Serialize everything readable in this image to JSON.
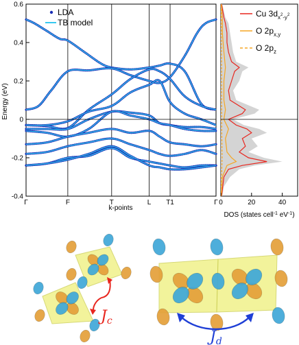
{
  "chart_data": [
    {
      "type": "line",
      "ylabel": "Energy (eV)",
      "xlabel": "k-points",
      "ylim": [
        -0.4,
        0.6
      ],
      "yticks": [
        -0.4,
        -0.2,
        0,
        0.2,
        0.4,
        0.6
      ],
      "ytick_labels": [
        "-0.4",
        "-0.2",
        "0",
        "0.2",
        "0.4",
        "0.6"
      ],
      "kpoints": [
        "Γ",
        "F",
        "T",
        "L",
        "T1",
        "Γ"
      ],
      "kpos": [
        0,
        1,
        2.05,
        2.95,
        3.45,
        4.55
      ],
      "fermi_level": 0,
      "grid": false,
      "legend_position": "top-left",
      "series": [
        {
          "name": "LDA",
          "marker": "dots",
          "color": "#1a2fb5"
        },
        {
          "name": "TB model",
          "marker": "line",
          "color": "#36c9f0"
        }
      ],
      "bands": [
        {
          "x": [
            0,
            0.2,
            0.5,
            0.8,
            1,
            1.4,
            1.8,
            2.05,
            2.5,
            2.95,
            3.2,
            3.45,
            3.8,
            4.2,
            4.55
          ],
          "y": [
            0.52,
            0.5,
            0.46,
            0.42,
            0.41,
            0.35,
            0.29,
            0.27,
            0.26,
            0.27,
            0.28,
            0.29,
            0.25,
            0.08,
            0.05
          ]
        },
        {
          "x": [
            0,
            0.3,
            0.6,
            1,
            1.5,
            2.05,
            2.5,
            2.95,
            3.2,
            3.45,
            3.8,
            4.1,
            4.3,
            4.55
          ],
          "y": [
            0.05,
            0.07,
            0.15,
            0.25,
            0.255,
            0.265,
            0.23,
            0.2,
            0.19,
            0.22,
            0.33,
            0.45,
            0.5,
            0.52
          ]
        },
        {
          "x": [
            0,
            0.5,
            1,
            1.5,
            2.05,
            2.5,
            2.95,
            3.2,
            3.45,
            3.8,
            4.2,
            4.55
          ],
          "y": [
            -0.03,
            -0.035,
            -0.045,
            0.05,
            0.13,
            0.21,
            0.26,
            0.25,
            0.21,
            0.12,
            0.07,
            0.05
          ]
        },
        {
          "x": [
            0,
            0.5,
            1,
            1.5,
            2.05,
            2.5,
            2.95,
            3.2,
            3.45,
            3.8,
            4.2,
            4.55
          ],
          "y": [
            -0.03,
            -0.03,
            -0.01,
            0.04,
            0.07,
            0.14,
            0.18,
            0.2,
            0.09,
            0.03,
            0.0,
            -0.03
          ]
        },
        {
          "x": [
            0,
            0.5,
            1,
            1.5,
            2.05,
            2.5,
            2.95,
            3.2,
            3.45,
            3.8,
            4.2,
            4.55
          ],
          "y": [
            -0.05,
            -0.05,
            -0.05,
            0.0,
            0.04,
            0.035,
            0.02,
            -0.02,
            -0.03,
            -0.04,
            -0.04,
            -0.05
          ]
        },
        {
          "x": [
            0,
            0.5,
            1,
            1.5,
            2.05,
            2.5,
            2.95,
            3.2,
            3.45,
            3.8,
            4.2,
            4.55
          ],
          "y": [
            -0.06,
            -0.07,
            -0.09,
            -0.05,
            0.04,
            0.02,
            0.0,
            -0.02,
            -0.03,
            -0.05,
            -0.06,
            -0.06
          ]
        },
        {
          "x": [
            0,
            0.5,
            1,
            1.5,
            2.05,
            2.5,
            2.95,
            3.2,
            3.45,
            3.8,
            4.2,
            4.55
          ],
          "y": [
            -0.13,
            -0.12,
            -0.09,
            -0.07,
            -0.05,
            -0.07,
            -0.06,
            -0.09,
            -0.12,
            -0.13,
            -0.14,
            -0.13
          ]
        },
        {
          "x": [
            0,
            0.5,
            1,
            1.5,
            2.05,
            2.5,
            2.95,
            3.2,
            3.45,
            3.8,
            4.2,
            4.55
          ],
          "y": [
            -0.18,
            -0.17,
            -0.14,
            -0.12,
            -0.1,
            -0.13,
            -0.16,
            -0.18,
            -0.19,
            -0.18,
            -0.16,
            -0.18
          ]
        },
        {
          "x": [
            0,
            0.5,
            1,
            1.5,
            2.05,
            2.5,
            2.95,
            3.2,
            3.45,
            3.8,
            4.2,
            4.55
          ],
          "y": [
            -0.24,
            -0.23,
            -0.2,
            -0.19,
            -0.15,
            -0.2,
            -0.22,
            -0.23,
            -0.24,
            -0.25,
            -0.24,
            -0.24
          ]
        },
        {
          "x": [
            0,
            0.5,
            1,
            1.5,
            2.05,
            2.5,
            2.95,
            3.2,
            3.45,
            3.8,
            4.2,
            4.55
          ],
          "y": [
            -0.24,
            -0.23,
            -0.21,
            -0.18,
            -0.14,
            -0.19,
            -0.24,
            -0.25,
            -0.26,
            -0.26,
            -0.25,
            -0.24
          ]
        }
      ]
    },
    {
      "type": "line",
      "xlabel_prefix": "DOS (states cell",
      "xlabel_sup1": "-1",
      "xlabel_mid": " eV",
      "xlabel_sup2": "-1",
      "xlabel_suffix": ")",
      "xlim": [
        0,
        50
      ],
      "xticks": [
        0,
        20,
        40
      ],
      "xtick_labels": [
        "0",
        "20",
        "40"
      ],
      "ylim": [
        -0.4,
        0.6
      ],
      "legend_position": "top-right",
      "legend": [
        {
          "main": "Cu 3d",
          "sub": "x",
          "subsup": "2",
          "subsep": "-y",
          "subsup2": "2",
          "color": "#e8261e",
          "dash": false
        },
        {
          "main": "O 2p",
          "sub": "x,y",
          "color": "#f5a623",
          "dash": false
        },
        {
          "main": "O 2p",
          "sub": "z",
          "color": "#f5a623",
          "dash": true
        }
      ],
      "series": [
        {
          "name": "total",
          "color": "#cfcfcf",
          "fill": true,
          "y": [
            -0.4,
            -0.35,
            -0.3,
            -0.26,
            -0.24,
            -0.22,
            -0.2,
            -0.17,
            -0.14,
            -0.1,
            -0.07,
            -0.05,
            -0.03,
            0.0,
            0.03,
            0.05,
            0.1,
            0.15,
            0.2,
            0.25,
            0.27,
            0.3,
            0.35,
            0.4,
            0.45,
            0.5,
            0.53,
            0.6
          ],
          "x": [
            1,
            2,
            6,
            12,
            22,
            40,
            28,
            18,
            24,
            20,
            30,
            25,
            15,
            8,
            22,
            25,
            10,
            8,
            12,
            14,
            18,
            10,
            8,
            7,
            6,
            5,
            3,
            1
          ]
        },
        {
          "name": "Cu 3dx2-y2",
          "color": "#e8261e",
          "fill": false,
          "y": [
            -0.4,
            -0.3,
            -0.26,
            -0.24,
            -0.22,
            -0.2,
            -0.17,
            -0.14,
            -0.1,
            -0.07,
            -0.05,
            -0.03,
            0.0,
            0.03,
            0.05,
            0.1,
            0.15,
            0.2,
            0.25,
            0.27,
            0.3,
            0.35,
            0.4,
            0.45,
            0.5,
            0.53,
            0.6
          ],
          "x": [
            0.5,
            2,
            5,
            14,
            30,
            18,
            12,
            16,
            14,
            20,
            17,
            10,
            5,
            14,
            16,
            6,
            5,
            7,
            9,
            12,
            7,
            5,
            4,
            4,
            3,
            2,
            0.5
          ]
        },
        {
          "name": "O 2px,y",
          "color": "#f5a623",
          "fill": false,
          "y": [
            -0.4,
            -0.3,
            -0.24,
            -0.22,
            -0.2,
            -0.17,
            -0.1,
            -0.05,
            0.0,
            0.05,
            0.1,
            0.2,
            0.27,
            0.35,
            0.45,
            0.53,
            0.6
          ],
          "x": [
            0.3,
            1,
            4,
            10,
            7,
            4,
            3,
            5,
            2,
            3,
            2,
            2,
            3,
            2,
            1,
            1,
            0.3
          ]
        },
        {
          "name": "O 2pz",
          "color": "#f5a623",
          "fill": false,
          "dash": true,
          "y": [
            -0.4,
            -0.2,
            0.0,
            0.2,
            0.4,
            0.6
          ],
          "x": [
            0.2,
            0.8,
            0.5,
            0.5,
            0.4,
            0.2
          ]
        }
      ]
    }
  ],
  "orbitals": {
    "left_label_main": "J",
    "left_label_sub": "c",
    "right_label_main": "J",
    "right_label_sub": "d",
    "left_arrow_color": "#e8261e",
    "right_arrow_color": "#1f3fd6",
    "plaquette_color": "#eef07a",
    "lobe_blue": "#3fa8d8",
    "lobe_orange": "#e4a03a"
  }
}
